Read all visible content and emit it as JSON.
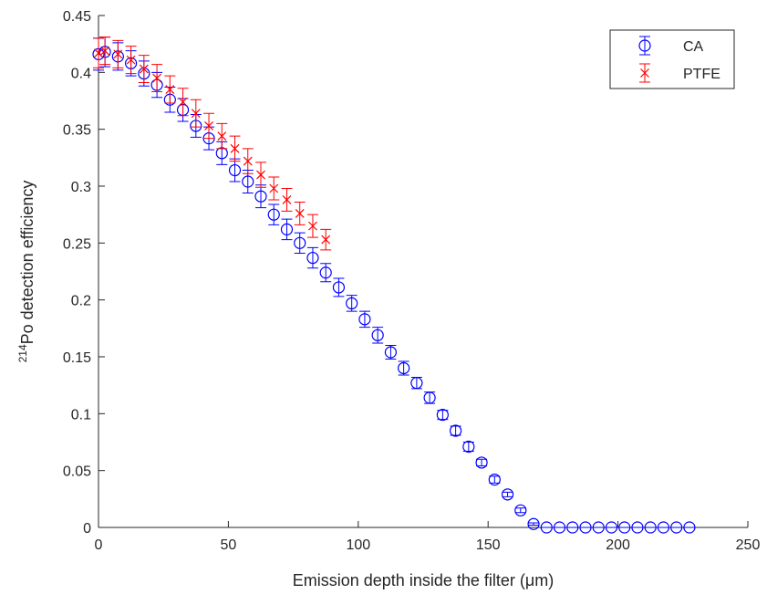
{
  "chart_data": {
    "type": "errorbar-scatter",
    "xlabel": "Emission depth inside the filter (μm)",
    "ylabel_superscript": "214",
    "ylabel": "Po detection efficiency",
    "xlim": [
      0,
      250
    ],
    "xticks": [
      0,
      50,
      100,
      150,
      200,
      250
    ],
    "ylim": [
      0,
      0.45
    ],
    "yticks": [
      0,
      0.05,
      0.1,
      0.15,
      0.2,
      0.25,
      0.3,
      0.35,
      0.4,
      0.45
    ],
    "legend": "upper right",
    "series": [
      {
        "name": "CA",
        "color": "#0000ff",
        "marker": "circle",
        "x": [
          0,
          2.5,
          7.5,
          12.5,
          17.5,
          22.5,
          27.5,
          32.5,
          37.5,
          42.5,
          47.5,
          52.5,
          57.5,
          62.5,
          67.5,
          72.5,
          77.5,
          82.5,
          87.5,
          92.5,
          97.5,
          102.5,
          107.5,
          112.5,
          117.5,
          122.5,
          127.5,
          132.5,
          137.5,
          142.5,
          147.5,
          152.5,
          157.5,
          162.5,
          167.5,
          172.5,
          177.5,
          182.5,
          187.5,
          192.5,
          197.5,
          202.5,
          207.5,
          212.5,
          217.5,
          222.5,
          227.5
        ],
        "values": [
          0.416,
          0.418,
          0.414,
          0.408,
          0.399,
          0.389,
          0.376,
          0.367,
          0.353,
          0.342,
          0.329,
          0.314,
          0.304,
          0.291,
          0.275,
          0.262,
          0.25,
          0.237,
          0.224,
          0.211,
          0.197,
          0.183,
          0.169,
          0.154,
          0.14,
          0.127,
          0.114,
          0.099,
          0.085,
          0.071,
          0.057,
          0.042,
          0.029,
          0.015,
          0.003,
          0,
          0,
          0,
          0,
          0,
          0,
          0,
          0,
          0,
          0,
          0,
          0
        ],
        "errors": [
          0.014,
          0.013,
          0.012,
          0.011,
          0.011,
          0.011,
          0.011,
          0.01,
          0.01,
          0.01,
          0.01,
          0.01,
          0.01,
          0.01,
          0.009,
          0.009,
          0.009,
          0.009,
          0.008,
          0.008,
          0.007,
          0.007,
          0.007,
          0.006,
          0.006,
          0.005,
          0.005,
          0.004,
          0.004,
          0.004,
          0.003,
          0.003,
          0.002,
          0.002,
          0.001,
          0,
          0,
          0,
          0,
          0,
          0,
          0,
          0,
          0,
          0,
          0,
          0
        ]
      },
      {
        "name": "PTFE",
        "color": "#ff0000",
        "marker": "x",
        "x": [
          0,
          2.5,
          7.5,
          12.5,
          17.5,
          22.5,
          27.5,
          32.5,
          37.5,
          42.5,
          47.5,
          52.5,
          57.5,
          62.5,
          67.5,
          72.5,
          77.5,
          82.5,
          87.5
        ],
        "values": [
          0.417,
          0.419,
          0.416,
          0.411,
          0.403,
          0.395,
          0.385,
          0.374,
          0.364,
          0.353,
          0.344,
          0.333,
          0.322,
          0.31,
          0.298,
          0.288,
          0.276,
          0.265,
          0.253
        ],
        "errors": [
          0.013,
          0.012,
          0.012,
          0.012,
          0.012,
          0.012,
          0.012,
          0.012,
          0.012,
          0.011,
          0.011,
          0.011,
          0.011,
          0.011,
          0.01,
          0.01,
          0.01,
          0.01,
          0.009
        ]
      }
    ]
  }
}
